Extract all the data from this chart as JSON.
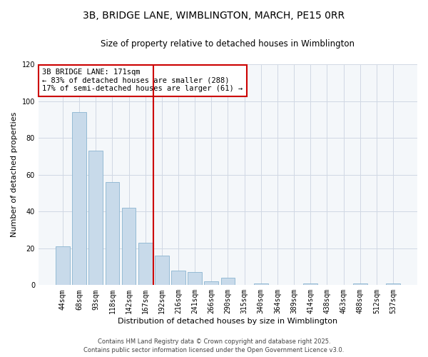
{
  "title_line1": "3B, BRIDGE LANE, WIMBLINGTON, MARCH, PE15 0RR",
  "title_line2": "Size of property relative to detached houses in Wimblington",
  "xlabel": "Distribution of detached houses by size in Wimblington",
  "ylabel": "Number of detached properties",
  "bar_color": "#c8daea",
  "bar_edge_color": "#8ab4d0",
  "bar_edge_width": 0.6,
  "categories": [
    "44sqm",
    "68sqm",
    "93sqm",
    "118sqm",
    "142sqm",
    "167sqm",
    "192sqm",
    "216sqm",
    "241sqm",
    "266sqm",
    "290sqm",
    "315sqm",
    "340sqm",
    "364sqm",
    "389sqm",
    "414sqm",
    "438sqm",
    "463sqm",
    "488sqm",
    "512sqm",
    "537sqm"
  ],
  "values": [
    21,
    94,
    73,
    56,
    42,
    23,
    16,
    8,
    7,
    2,
    4,
    0,
    1,
    0,
    0,
    1,
    0,
    0,
    1,
    0,
    1
  ],
  "vline_x_index": 5,
  "vline_color": "#cc0000",
  "annotation_text": "3B BRIDGE LANE: 171sqm\n← 83% of detached houses are smaller (288)\n17% of semi-detached houses are larger (61) →",
  "ylim": [
    0,
    120
  ],
  "yticks": [
    0,
    20,
    40,
    60,
    80,
    100,
    120
  ],
  "background_color": "#ffffff",
  "plot_bg_color": "#f4f7fa",
  "footer_line1": "Contains HM Land Registry data © Crown copyright and database right 2025.",
  "footer_line2": "Contains public sector information licensed under the Open Government Licence v3.0.",
  "grid_color": "#d0d8e4",
  "title_fontsize": 10,
  "subtitle_fontsize": 8.5,
  "axis_label_fontsize": 8,
  "tick_fontsize": 7,
  "annotation_fontsize": 7.5,
  "footer_fontsize": 6
}
